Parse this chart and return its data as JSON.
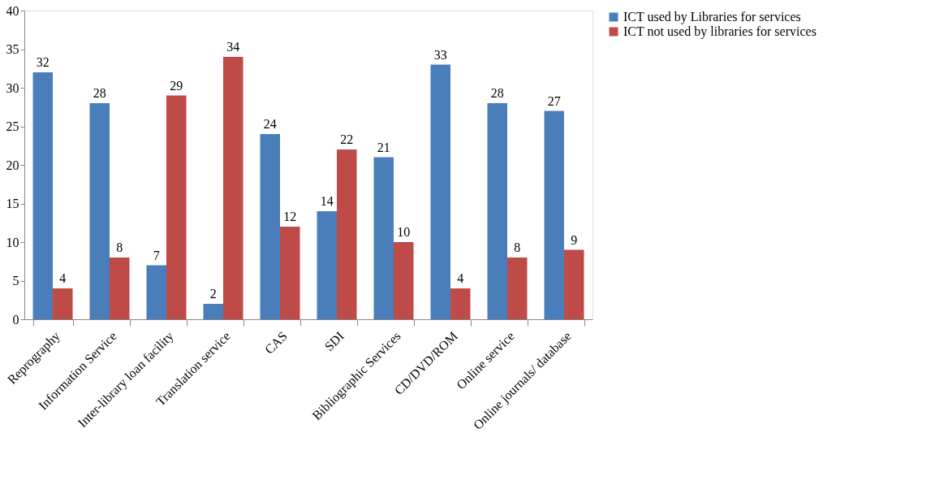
{
  "chart_data": {
    "type": "bar",
    "categories": [
      "Reprography",
      "Information Service",
      "Inter-library loan facility",
      "Translation service",
      "CAS",
      "SDI",
      "Bibliographic Services",
      "CD/DVD/ROM",
      "Online service",
      "Online journals/ database"
    ],
    "series": [
      {
        "name": "ICT used by Libraries for services",
        "color": "#4a7ebb",
        "values": [
          32,
          28,
          7,
          2,
          24,
          14,
          21,
          33,
          28,
          27
        ]
      },
      {
        "name": "ICT  not used by libraries for services",
        "color": "#be4b48",
        "values": [
          4,
          8,
          29,
          34,
          12,
          22,
          10,
          4,
          8,
          9
        ]
      }
    ],
    "ylim": [
      0,
      40
    ],
    "yticks": [
      0,
      5,
      10,
      15,
      20,
      25,
      30,
      35,
      40
    ],
    "grid": false,
    "legend": "right",
    "data_labels": true
  }
}
